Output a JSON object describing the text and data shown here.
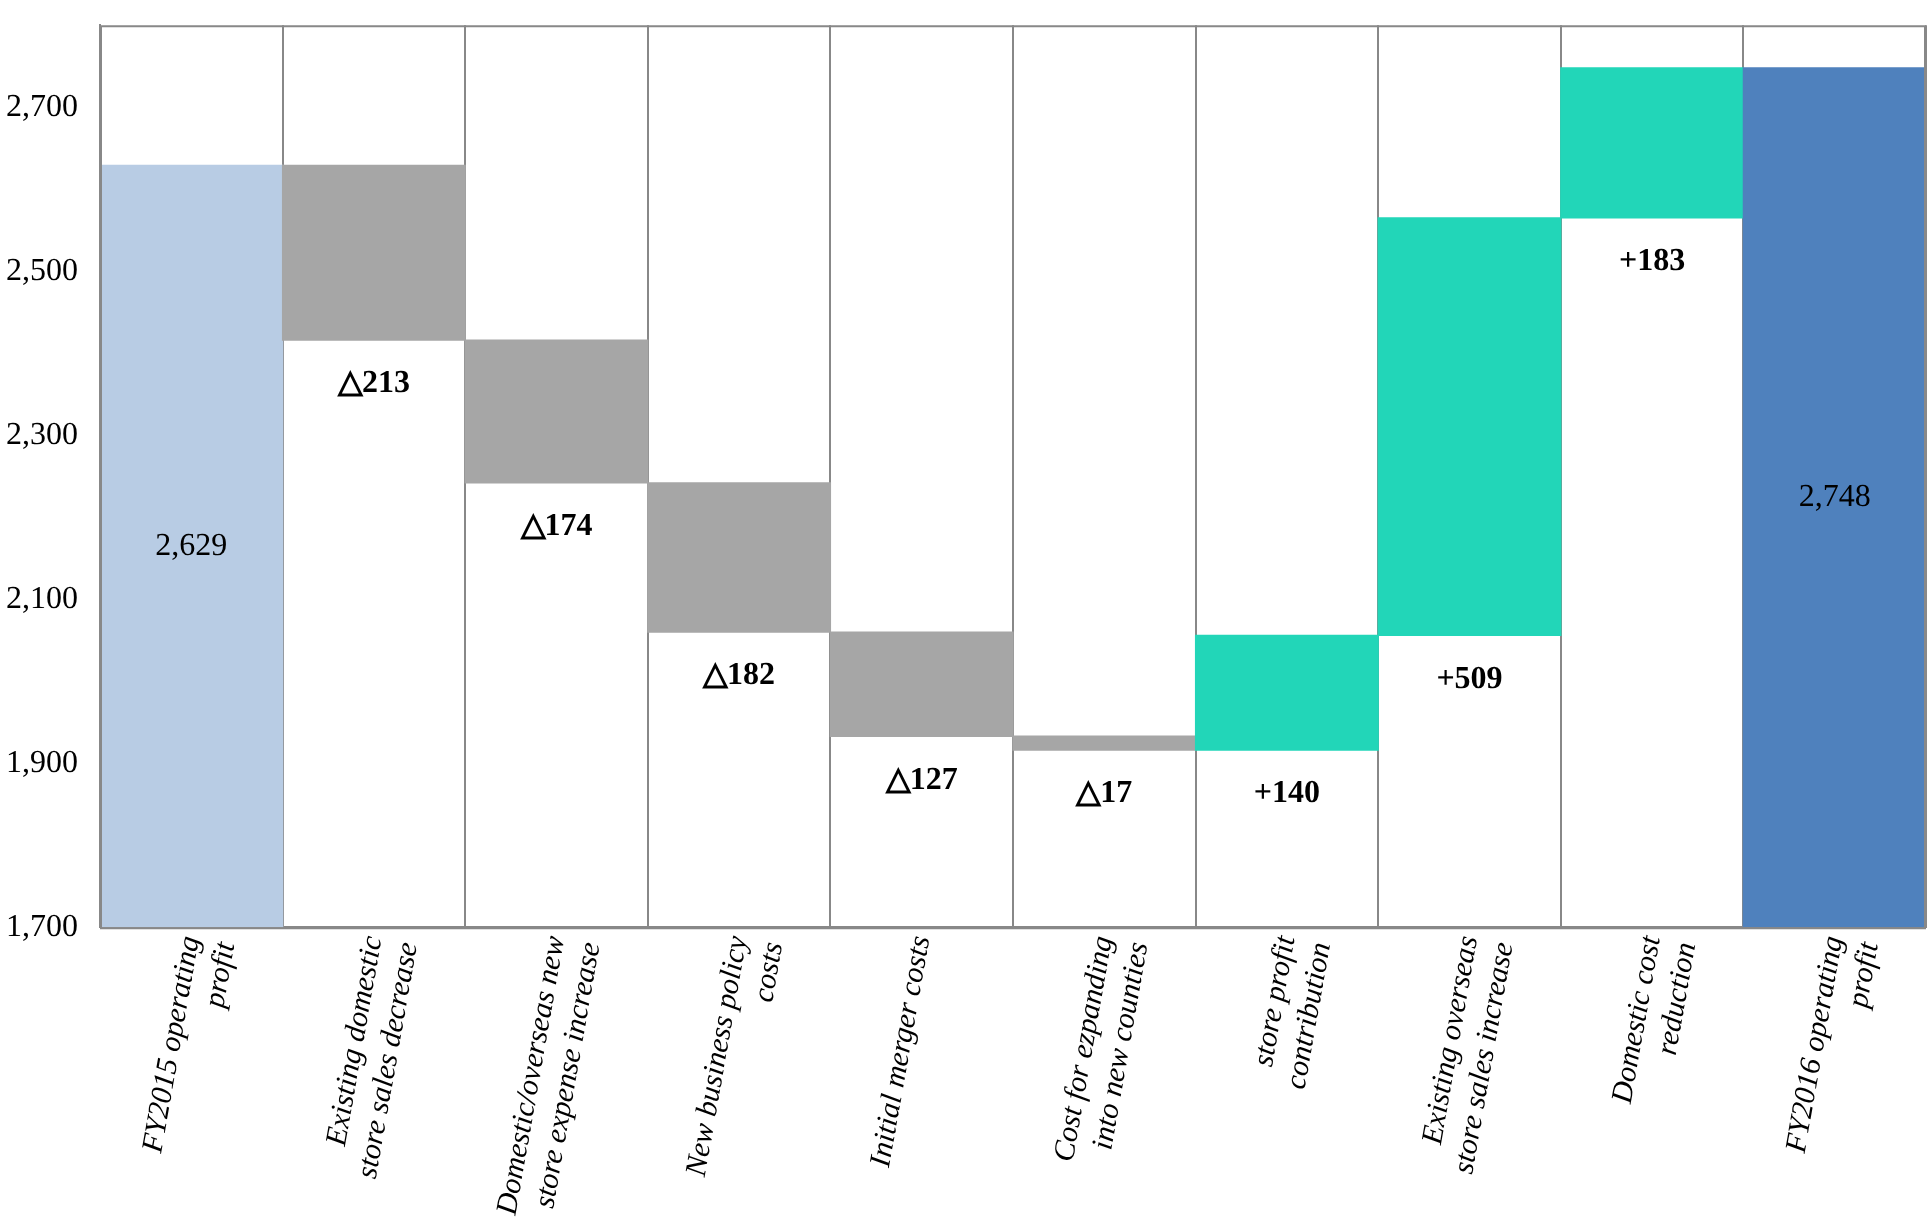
{
  "chart_data": {
    "type": "bar",
    "categories": [
      "FY2015 operating profit",
      "Existing domestic store sales decrease",
      "Domestic/overseas new store expense increase",
      "New business policy costs",
      "Initial merger costs",
      "Cost for ezpanding into new counties",
      "store profit contribution",
      "Existing overseas store sales increase",
      "Domestic cost reduction",
      "FY2016 operating profit"
    ],
    "values": [
      2629,
      -213,
      -174,
      -182,
      -127,
      -17,
      140,
      509,
      183,
      2748
    ],
    "base": [
      null,
      2629,
      2416,
      2242,
      2060,
      1933,
      1916,
      2056,
      2565,
      null
    ],
    "colors": [
      "#b8cce4",
      "#a6a6a6",
      "#a6a6a6",
      "#a6a6a6",
      "#a6a6a6",
      "#a6a6a6",
      "#22d6b8",
      "#22d6b8",
      "#22d6b8",
      "#4f81bd"
    ],
    "value_labels": [
      "2,629",
      "△213",
      "△174",
      "△182",
      "△127",
      "△17",
      "+140",
      "+509",
      "+183",
      "2,748"
    ],
    "ylim": [
      1700,
      2800
    ],
    "yticks": [
      {
        "value": 1700,
        "label": "1,700"
      },
      {
        "value": 1900,
        "label": "1,900"
      },
      {
        "value": 2100,
        "label": "2,100"
      },
      {
        "value": 2300,
        "label": "2,300"
      },
      {
        "value": 2500,
        "label": "2,500"
      },
      {
        "value": 2700,
        "label": "2,700"
      }
    ],
    "grid": "x",
    "legend": false
  }
}
